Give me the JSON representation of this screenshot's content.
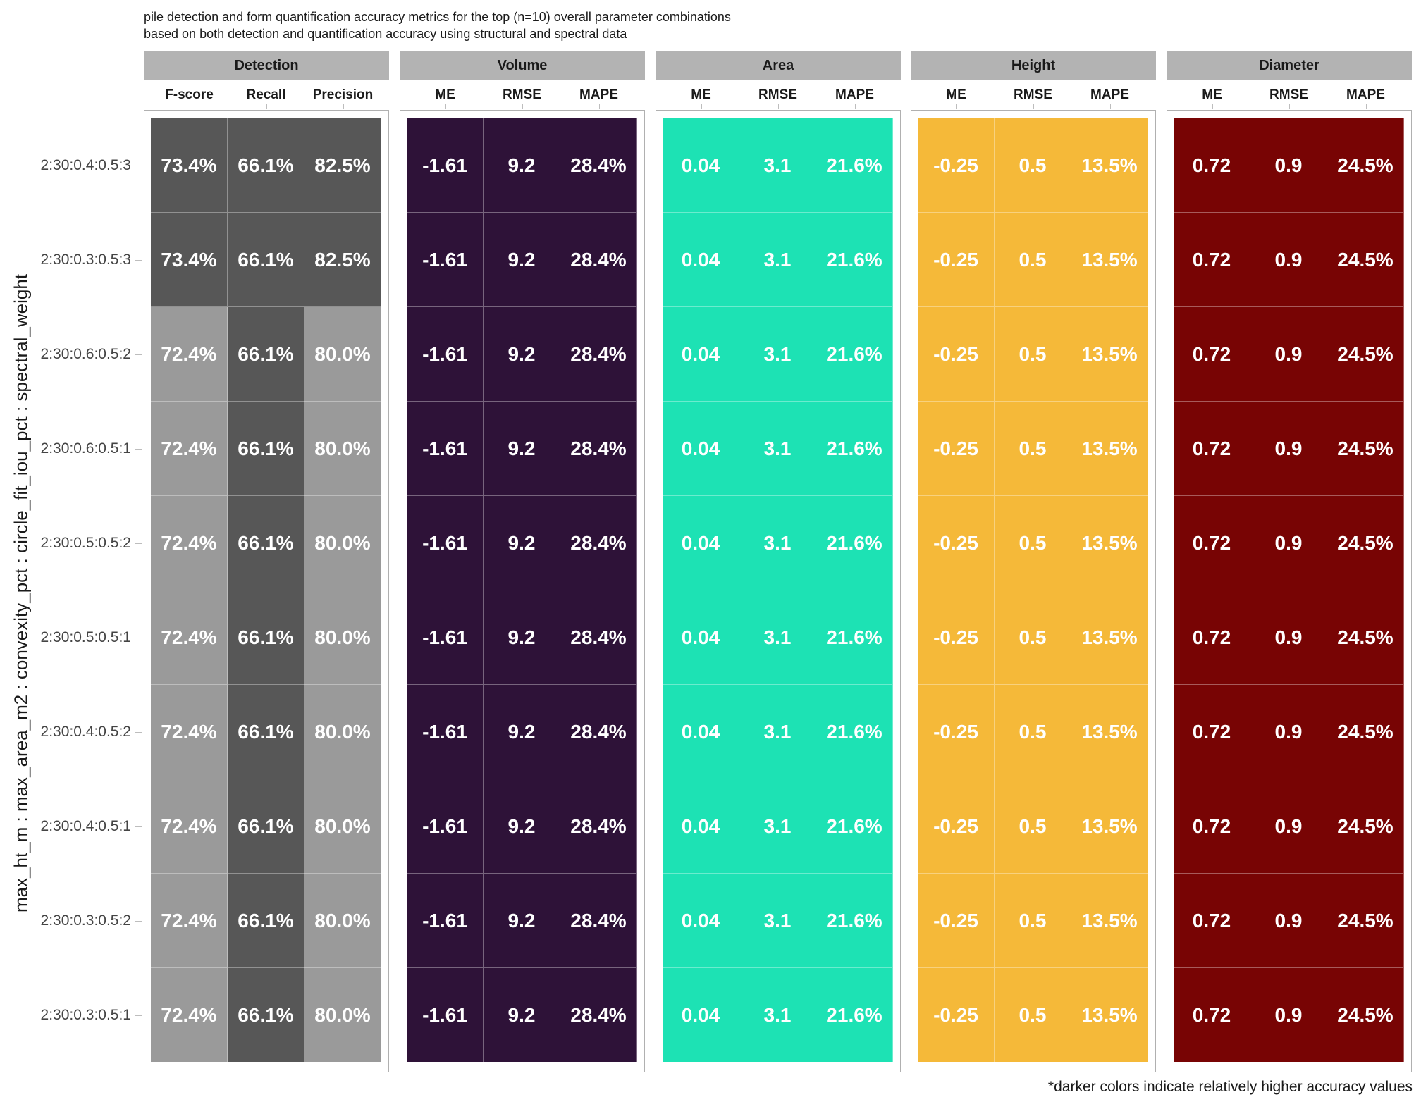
{
  "title": {
    "line1": "pile detection and form quantification accuracy metrics for the top (n=10) overall parameter combinations",
    "line2": "based on both detection and quantification accuracy using structural and spectral data"
  },
  "footnote": "*darker colors indicate relatively higher accuracy values",
  "chart_data": {
    "type": "heatmap",
    "ylabel": "max_ht_m : max_area_m2 : convexity_pct : circle_fit_iou_pct : spectral_weight",
    "rows": [
      "2:30:0.4:0.5:3",
      "2:30:0.3:0.5:3",
      "2:30:0.6:0.5:2",
      "2:30:0.6:0.5:1",
      "2:30:0.5:0.5:2",
      "2:30:0.5:0.5:1",
      "2:30:0.4:0.5:2",
      "2:30:0.4:0.5:1",
      "2:30:0.3:0.5:2",
      "2:30:0.3:0.5:1"
    ],
    "panels": [
      {
        "name": "Detection",
        "metrics": [
          "F-score",
          "Recall",
          "Precision"
        ],
        "colors": {
          "dark": "#575757",
          "light": "#9a9a9a"
        },
        "values": [
          [
            "73.4%",
            "66.1%",
            "82.5%"
          ],
          [
            "73.4%",
            "66.1%",
            "82.5%"
          ],
          [
            "72.4%",
            "66.1%",
            "80.0%"
          ],
          [
            "72.4%",
            "66.1%",
            "80.0%"
          ],
          [
            "72.4%",
            "66.1%",
            "80.0%"
          ],
          [
            "72.4%",
            "66.1%",
            "80.0%"
          ],
          [
            "72.4%",
            "66.1%",
            "80.0%"
          ],
          [
            "72.4%",
            "66.1%",
            "80.0%"
          ],
          [
            "72.4%",
            "66.1%",
            "80.0%"
          ],
          [
            "72.4%",
            "66.1%",
            "80.0%"
          ]
        ],
        "dark_flags": [
          [
            1,
            1,
            1
          ],
          [
            1,
            1,
            1
          ],
          [
            0,
            1,
            0
          ],
          [
            0,
            1,
            0
          ],
          [
            0,
            1,
            0
          ],
          [
            0,
            1,
            0
          ],
          [
            0,
            1,
            0
          ],
          [
            0,
            1,
            0
          ],
          [
            0,
            1,
            0
          ],
          [
            0,
            1,
            0
          ]
        ]
      },
      {
        "name": "Volume",
        "metrics": [
          "ME",
          "RMSE",
          "MAPE"
        ],
        "colors": {
          "dark": "#2e1238",
          "light": "#2e1238"
        },
        "values": [
          [
            "-1.61",
            "9.2",
            "28.4%"
          ],
          [
            "-1.61",
            "9.2",
            "28.4%"
          ],
          [
            "-1.61",
            "9.2",
            "28.4%"
          ],
          [
            "-1.61",
            "9.2",
            "28.4%"
          ],
          [
            "-1.61",
            "9.2",
            "28.4%"
          ],
          [
            "-1.61",
            "9.2",
            "28.4%"
          ],
          [
            "-1.61",
            "9.2",
            "28.4%"
          ],
          [
            "-1.61",
            "9.2",
            "28.4%"
          ],
          [
            "-1.61",
            "9.2",
            "28.4%"
          ],
          [
            "-1.61",
            "9.2",
            "28.4%"
          ]
        ]
      },
      {
        "name": "Area",
        "metrics": [
          "ME",
          "RMSE",
          "MAPE"
        ],
        "colors": {
          "dark": "#1de2b4",
          "light": "#1de2b4"
        },
        "values": [
          [
            "0.04",
            "3.1",
            "21.6%"
          ],
          [
            "0.04",
            "3.1",
            "21.6%"
          ],
          [
            "0.04",
            "3.1",
            "21.6%"
          ],
          [
            "0.04",
            "3.1",
            "21.6%"
          ],
          [
            "0.04",
            "3.1",
            "21.6%"
          ],
          [
            "0.04",
            "3.1",
            "21.6%"
          ],
          [
            "0.04",
            "3.1",
            "21.6%"
          ],
          [
            "0.04",
            "3.1",
            "21.6%"
          ],
          [
            "0.04",
            "3.1",
            "21.6%"
          ],
          [
            "0.04",
            "3.1",
            "21.6%"
          ]
        ]
      },
      {
        "name": "Height",
        "metrics": [
          "ME",
          "RMSE",
          "MAPE"
        ],
        "colors": {
          "dark": "#f5b939",
          "light": "#f5b939"
        },
        "values": [
          [
            "-0.25",
            "0.5",
            "13.5%"
          ],
          [
            "-0.25",
            "0.5",
            "13.5%"
          ],
          [
            "-0.25",
            "0.5",
            "13.5%"
          ],
          [
            "-0.25",
            "0.5",
            "13.5%"
          ],
          [
            "-0.25",
            "0.5",
            "13.5%"
          ],
          [
            "-0.25",
            "0.5",
            "13.5%"
          ],
          [
            "-0.25",
            "0.5",
            "13.5%"
          ],
          [
            "-0.25",
            "0.5",
            "13.5%"
          ],
          [
            "-0.25",
            "0.5",
            "13.5%"
          ],
          [
            "-0.25",
            "0.5",
            "13.5%"
          ]
        ]
      },
      {
        "name": "Diameter",
        "metrics": [
          "ME",
          "RMSE",
          "MAPE"
        ],
        "colors": {
          "dark": "#780404",
          "light": "#780404"
        },
        "values": [
          [
            "0.72",
            "0.9",
            "24.5%"
          ],
          [
            "0.72",
            "0.9",
            "24.5%"
          ],
          [
            "0.72",
            "0.9",
            "24.5%"
          ],
          [
            "0.72",
            "0.9",
            "24.5%"
          ],
          [
            "0.72",
            "0.9",
            "24.5%"
          ],
          [
            "0.72",
            "0.9",
            "24.5%"
          ],
          [
            "0.72",
            "0.9",
            "24.5%"
          ],
          [
            "0.72",
            "0.9",
            "24.5%"
          ],
          [
            "0.72",
            "0.9",
            "24.5%"
          ],
          [
            "0.72",
            "0.9",
            "24.5%"
          ]
        ]
      }
    ]
  }
}
